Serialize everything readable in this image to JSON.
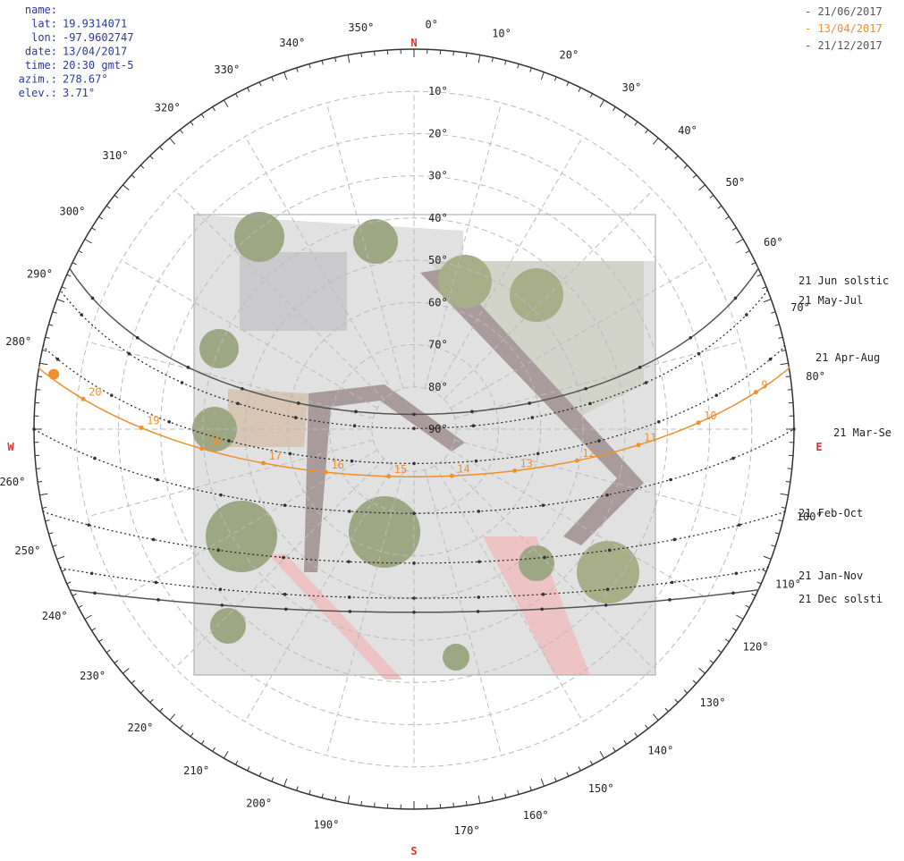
{
  "info": {
    "name_label": "name:",
    "lat_label": "lat:",
    "lat": "19.9314071",
    "lon_label": "lon:",
    "lon": "-97.9602747",
    "date_label": "date:",
    "date": "13/04/2017",
    "time_label": "time:",
    "time": "20:30 gmt-5",
    "azim_label": "azim.:",
    "azim": "278.67°",
    "elev_label": "elev.:",
    "elev": "3.71°"
  },
  "legend": [
    {
      "label": "- 21/06/2017",
      "color": "#555555"
    },
    {
      "label": "- 13/04/2017",
      "color": "#f0902a"
    },
    {
      "label": "- 21/12/2017",
      "color": "#555555"
    }
  ],
  "compass": {
    "n": "N",
    "e": "E",
    "s": "S",
    "w": "W"
  },
  "azimuth_labels": [
    {
      "value": 0,
      "label": "0°"
    },
    {
      "value": 10,
      "label": "10°"
    },
    {
      "value": 20,
      "label": "20°"
    },
    {
      "value": 30,
      "label": "30°"
    },
    {
      "value": 40,
      "label": "40°"
    },
    {
      "value": 50,
      "label": "50°"
    },
    {
      "value": 60,
      "label": "60°"
    },
    {
      "value": 70,
      "label": "70°"
    },
    {
      "value": 80,
      "label": "80°"
    },
    {
      "value": 100,
      "label": "100°"
    },
    {
      "value": 110,
      "label": "110°"
    },
    {
      "value": 120,
      "label": "120°"
    },
    {
      "value": 130,
      "label": "130°"
    },
    {
      "value": 140,
      "label": "140°"
    },
    {
      "value": 150,
      "label": "150°"
    },
    {
      "value": 160,
      "label": "160°"
    },
    {
      "value": 170,
      "label": "170°"
    },
    {
      "value": 190,
      "label": "190°"
    },
    {
      "value": 200,
      "label": "200°"
    },
    {
      "value": 210,
      "label": "210°"
    },
    {
      "value": 220,
      "label": "220°"
    },
    {
      "value": 230,
      "label": "230°"
    },
    {
      "value": 240,
      "label": "240°"
    },
    {
      "value": 250,
      "label": "250°"
    },
    {
      "value": 260,
      "label": "260°"
    },
    {
      "value": 280,
      "label": "280°"
    },
    {
      "value": 290,
      "label": "290°"
    },
    {
      "value": 300,
      "label": "300°"
    },
    {
      "value": 310,
      "label": "310°"
    },
    {
      "value": 320,
      "label": "320°"
    },
    {
      "value": 330,
      "label": "330°"
    },
    {
      "value": 340,
      "label": "340°"
    },
    {
      "value": 350,
      "label": "350°"
    }
  ],
  "elevation_labels": [
    {
      "value": 10,
      "label": "10°"
    },
    {
      "value": 20,
      "label": "20°"
    },
    {
      "value": 30,
      "label": "30°"
    },
    {
      "value": 40,
      "label": "40°"
    },
    {
      "value": 50,
      "label": "50°"
    },
    {
      "value": 60,
      "label": "60°"
    },
    {
      "value": 70,
      "label": "70°"
    },
    {
      "value": 80,
      "label": "80°"
    },
    {
      "value": 90,
      "label": "90°"
    }
  ],
  "hour_labels": [
    {
      "value": 9,
      "label": "9"
    },
    {
      "value": 10,
      "label": "10"
    },
    {
      "value": 11,
      "label": "11"
    },
    {
      "value": 12,
      "label": "12"
    },
    {
      "value": 13,
      "label": "13"
    },
    {
      "value": 14,
      "label": "14"
    },
    {
      "value": 15,
      "label": "15"
    },
    {
      "value": 16,
      "label": "16"
    },
    {
      "value": 17,
      "label": "17"
    },
    {
      "value": 18,
      "label": "18"
    },
    {
      "value": 19,
      "label": "19"
    },
    {
      "value": 20,
      "label": "20"
    }
  ],
  "curve_labels": [
    "21 Jun  solstic",
    "21 May-Jul",
    "21 Apr-Aug",
    "21 Mar-Se",
    "21 Feb-Oct",
    "21 Jan-Nov",
    "21 Dec  solsti"
  ]
}
